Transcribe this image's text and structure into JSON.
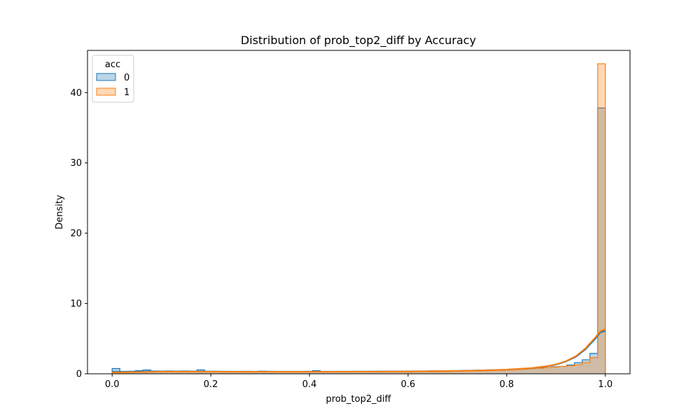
{
  "chart_data": {
    "type": "histogram",
    "title": "Distribution of prob_top2_diff by Accuracy",
    "xlabel": "prob_top2_diff",
    "ylabel": "Density",
    "xlim": [
      -0.05,
      1.05
    ],
    "ylim": [
      0,
      46
    ],
    "xticks": [
      0.0,
      0.2,
      0.4,
      0.6,
      0.8,
      1.0
    ],
    "xtick_labels": [
      "0.0",
      "0.2",
      "0.4",
      "0.6",
      "0.8",
      "1.0"
    ],
    "yticks": [
      0,
      10,
      20,
      30,
      40
    ],
    "ytick_labels": [
      "0",
      "10",
      "20",
      "30",
      "40"
    ],
    "grid": false,
    "legend": {
      "title": "acc",
      "placement": "top-left"
    },
    "bins": {
      "start": 0.0,
      "width": 0.015625,
      "count": 64
    },
    "series": [
      {
        "name": "0",
        "color": "#1f77b4",
        "fill": "#1f77b4",
        "values": [
          0.75,
          0.3,
          0.35,
          0.45,
          0.55,
          0.4,
          0.35,
          0.4,
          0.38,
          0.4,
          0.38,
          0.55,
          0.35,
          0.35,
          0.3,
          0.32,
          0.33,
          0.35,
          0.3,
          0.38,
          0.35,
          0.32,
          0.3,
          0.33,
          0.3,
          0.35,
          0.45,
          0.3,
          0.3,
          0.32,
          0.28,
          0.3,
          0.33,
          0.3,
          0.33,
          0.32,
          0.3,
          0.33,
          0.3,
          0.35,
          0.32,
          0.4,
          0.35,
          0.38,
          0.4,
          0.42,
          0.45,
          0.45,
          0.48,
          0.5,
          0.55,
          0.6,
          0.65,
          0.75,
          0.8,
          0.85,
          0.9,
          1.0,
          1.05,
          1.25,
          1.6,
          2.0,
          2.9,
          37.8
        ],
        "kde": [
          [
            0.0,
            0.3
          ],
          [
            0.1,
            0.35
          ],
          [
            0.2,
            0.32
          ],
          [
            0.3,
            0.31
          ],
          [
            0.4,
            0.31
          ],
          [
            0.5,
            0.32
          ],
          [
            0.6,
            0.35
          ],
          [
            0.7,
            0.42
          ],
          [
            0.75,
            0.5
          ],
          [
            0.8,
            0.6
          ],
          [
            0.85,
            0.8
          ],
          [
            0.88,
            1.05
          ],
          [
            0.9,
            1.3
          ],
          [
            0.92,
            1.75
          ],
          [
            0.94,
            2.4
          ],
          [
            0.96,
            3.5
          ],
          [
            0.98,
            5.0
          ],
          [
            0.99,
            5.9
          ],
          [
            1.0,
            6.1
          ]
        ]
      },
      {
        "name": "1",
        "color": "#ff7f0e",
        "fill": "#ff7f0e",
        "values": [
          0.15,
          0.2,
          0.25,
          0.3,
          0.3,
          0.3,
          0.3,
          0.3,
          0.3,
          0.3,
          0.3,
          0.3,
          0.3,
          0.28,
          0.28,
          0.28,
          0.28,
          0.28,
          0.28,
          0.28,
          0.28,
          0.28,
          0.28,
          0.28,
          0.28,
          0.28,
          0.28,
          0.28,
          0.28,
          0.28,
          0.28,
          0.28,
          0.28,
          0.28,
          0.28,
          0.28,
          0.28,
          0.28,
          0.28,
          0.3,
          0.3,
          0.3,
          0.3,
          0.32,
          0.34,
          0.36,
          0.38,
          0.4,
          0.42,
          0.46,
          0.5,
          0.55,
          0.6,
          0.66,
          0.74,
          0.8,
          0.88,
          0.95,
          1.05,
          1.15,
          1.3,
          1.6,
          2.3,
          44.1
        ],
        "kde": [
          [
            0.0,
            0.2
          ],
          [
            0.1,
            0.3
          ],
          [
            0.2,
            0.3
          ],
          [
            0.3,
            0.29
          ],
          [
            0.4,
            0.29
          ],
          [
            0.5,
            0.3
          ],
          [
            0.6,
            0.33
          ],
          [
            0.7,
            0.4
          ],
          [
            0.75,
            0.48
          ],
          [
            0.8,
            0.6
          ],
          [
            0.85,
            0.82
          ],
          [
            0.88,
            1.08
          ],
          [
            0.9,
            1.35
          ],
          [
            0.92,
            1.8
          ],
          [
            0.94,
            2.5
          ],
          [
            0.96,
            3.65
          ],
          [
            0.98,
            5.2
          ],
          [
            0.99,
            6.1
          ],
          [
            1.0,
            6.3
          ]
        ]
      }
    ]
  }
}
